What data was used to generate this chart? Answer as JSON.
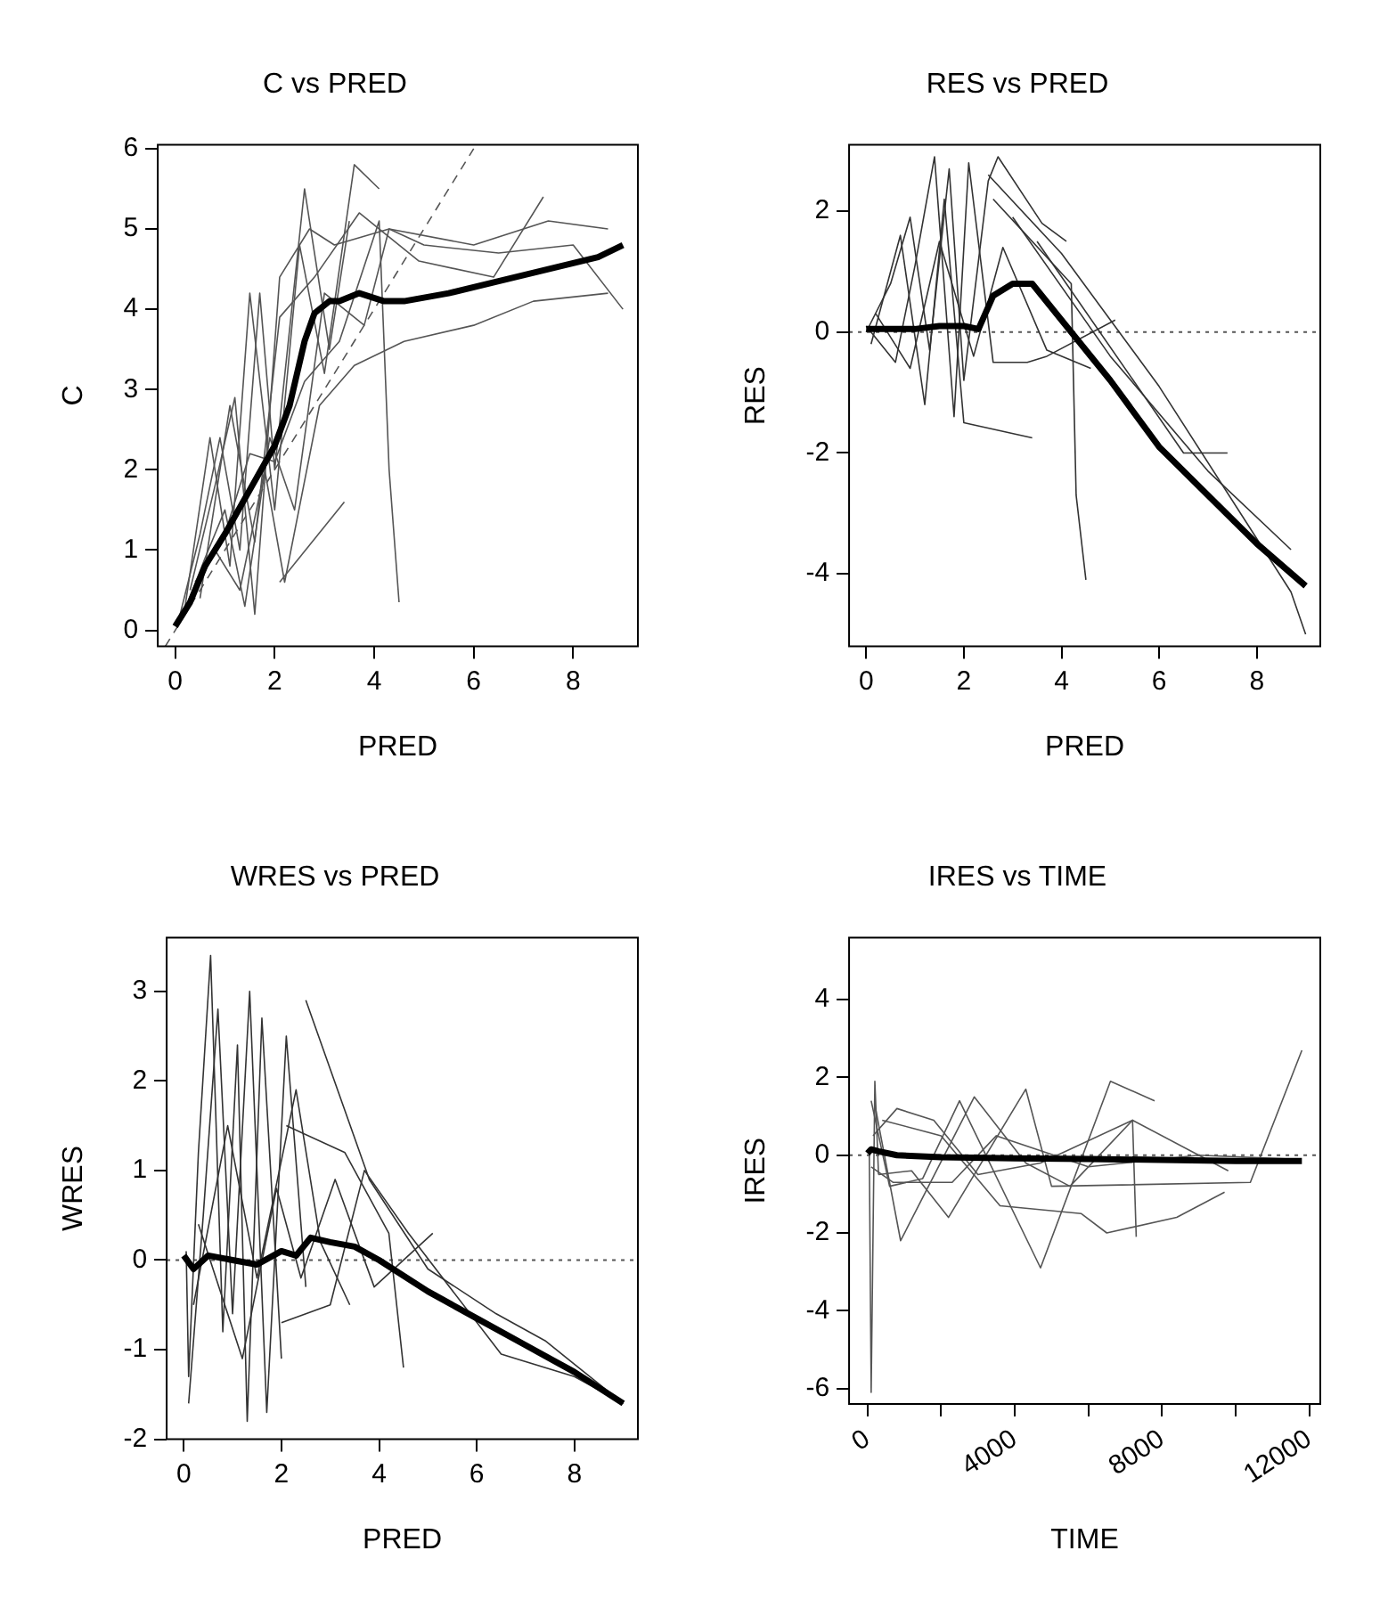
{
  "chart_data": [
    {
      "type": "line",
      "title": "C vs PRED",
      "xlabel": "PRED",
      "ylabel": "C",
      "xlim": [
        -0.35,
        9.3
      ],
      "ylim": [
        -0.2,
        6.05
      ],
      "xticks": [
        0,
        2,
        4,
        6,
        8
      ],
      "yticks": [
        0,
        1,
        2,
        3,
        4,
        5,
        6
      ],
      "grid": false,
      "legend": false,
      "marker": "none",
      "series": [
        {
          "color": "#000000",
          "x": [
            0,
            0.3,
            0.6,
            1,
            1.5,
            2,
            2.3,
            2.6,
            2.8,
            3.1,
            3.3,
            3.7,
            4.2,
            4.6,
            5.5,
            6.5,
            7.5,
            8.5,
            9
          ],
          "values": [
            0.05,
            0.35,
            0.8,
            1.2,
            1.75,
            2.3,
            2.8,
            3.6,
            3.95,
            4.1,
            4.1,
            4.2,
            4.1,
            4.1,
            4.2,
            4.35,
            4.5,
            4.65,
            4.8
          ]
        },
        {
          "color": "#555555",
          "line_style": "dashed",
          "x": [
            -0.2,
            6
          ],
          "values": [
            -0.2,
            6
          ]
        },
        {
          "color": "#555555",
          "x": [
            0.1,
            0.5,
            0.9,
            1.3,
            1.7,
            2.0,
            2.6,
            3.1,
            3.5
          ],
          "values": [
            0.2,
            1.2,
            2.4,
            1.0,
            4.2,
            2.0,
            5.5,
            3.5,
            5.1
          ]
        },
        {
          "color": "#555555",
          "x": [
            0.2,
            0.7,
            1.1,
            1.5,
            2.0,
            2.5,
            3.0,
            3.6,
            4.1
          ],
          "values": [
            0.3,
            2.4,
            0.8,
            4.2,
            1.5,
            4.8,
            3.2,
            5.8,
            5.5
          ]
        },
        {
          "color": "#555555",
          "x": [
            0.3,
            0.8,
            1.2,
            1.6,
            2.1,
            2.7,
            3.2,
            4.3,
            6.0,
            7.5,
            8.7
          ],
          "values": [
            0.5,
            1.8,
            2.9,
            0.2,
            4.4,
            5.0,
            4.8,
            5.0,
            4.8,
            5.1,
            5.0
          ]
        },
        {
          "color": "#555555",
          "x": [
            0.1,
            0.6,
            1.0,
            1.4,
            1.9,
            2.4,
            3.0,
            3.8,
            4.3,
            5.0,
            6.5,
            8.0,
            9.0
          ],
          "values": [
            0.1,
            0.9,
            1.5,
            0.3,
            2.4,
            1.5,
            4.2,
            3.8,
            5.0,
            4.8,
            4.7,
            4.8,
            4.0
          ]
        },
        {
          "color": "#555555",
          "x": [
            0.2,
            0.8,
            1.3,
            1.8,
            2.2,
            2.9,
            3.6,
            4.6,
            6.0,
            7.2,
            8.7
          ],
          "values": [
            0.2,
            1.0,
            0.5,
            2.0,
            0.6,
            2.8,
            3.3,
            3.6,
            3.8,
            4.1,
            4.2
          ]
        },
        {
          "color": "#555555",
          "x": [
            0.4,
            1.0,
            1.5,
            2.0,
            2.6,
            3.3,
            4.1,
            4.3,
            4.5
          ],
          "values": [
            0.6,
            1.2,
            2.2,
            2.1,
            3.1,
            3.6,
            5.1,
            2.0,
            0.35
          ]
        },
        {
          "color": "#555555",
          "x": [
            2.1,
            3.4
          ],
          "values": [
            0.6,
            1.6
          ]
        },
        {
          "color": "#555555",
          "x": [
            0.5,
            1.1,
            1.6,
            2.1,
            2.8,
            3.7,
            4.9,
            6.4,
            7.4
          ],
          "values": [
            0.4,
            2.8,
            1.1,
            3.9,
            4.4,
            5.2,
            4.6,
            4.4,
            5.4
          ]
        }
      ]
    },
    {
      "type": "line",
      "title": "RES vs PRED",
      "xlabel": "PRED",
      "ylabel": "RES",
      "xlim": [
        -0.35,
        9.3
      ],
      "ylim": [
        -5.2,
        3.1
      ],
      "xticks": [
        0,
        2,
        4,
        6,
        8
      ],
      "yticks": [
        -4,
        -2,
        0,
        2
      ],
      "grid": false,
      "legend": false,
      "marker": "none",
      "ref_lines": [
        {
          "axis": "y",
          "value": 0,
          "line_style": "dotted",
          "color": "#555555"
        }
      ],
      "series": [
        {
          "color": "#000000",
          "x": [
            0,
            0.5,
            1,
            1.5,
            2,
            2.3,
            2.6,
            3,
            3.4,
            4,
            5,
            6,
            7,
            8,
            9
          ],
          "values": [
            0.05,
            0.05,
            0.05,
            0.1,
            0.1,
            0.05,
            0.6,
            0.8,
            0.8,
            0.2,
            -0.8,
            -1.9,
            -2.7,
            -3.5,
            -4.2
          ]
        },
        {
          "color": "#333333",
          "x": [
            0,
            0.5,
            0.9,
            1.3,
            1.7,
            2.0,
            2.5,
            2.7,
            3.6,
            4.1
          ],
          "values": [
            0,
            0.8,
            1.9,
            -0.3,
            2.7,
            -0.8,
            2.5,
            2.9,
            1.8,
            1.5
          ]
        },
        {
          "color": "#333333",
          "x": [
            0,
            0.6,
            1.0,
            1.4,
            1.8,
            2.1,
            2.6,
            3.3,
            3.7,
            5.1
          ],
          "values": [
            0.1,
            -0.5,
            1.1,
            2.9,
            -1.4,
            2.8,
            -0.5,
            -0.5,
            -0.4,
            0.2
          ]
        },
        {
          "color": "#333333",
          "x": [
            0.1,
            0.7,
            1.2,
            1.6,
            2.0,
            3.4
          ],
          "values": [
            -0.2,
            1.6,
            -1.2,
            2.2,
            -1.5,
            -1.75
          ]
        },
        {
          "color": "#333333",
          "x": [
            2.5,
            4.0,
            6.0,
            8.7,
            9.0
          ],
          "values": [
            2.6,
            1.3,
            -0.9,
            -4.3,
            -5.0
          ]
        },
        {
          "color": "#333333",
          "x": [
            3.0,
            5.0,
            7.0,
            8.7
          ],
          "values": [
            1.9,
            -0.4,
            -2.3,
            -3.6
          ]
        },
        {
          "color": "#333333",
          "x": [
            2.6,
            4.2,
            4.3,
            4.5
          ],
          "values": [
            2.2,
            0.8,
            -2.7,
            -4.1
          ]
        },
        {
          "color": "#333333",
          "x": [
            3.5,
            6.5,
            7.4
          ],
          "values": [
            1.5,
            -2.0,
            -2.0
          ]
        },
        {
          "color": "#333333",
          "x": [
            0.2,
            0.9,
            1.5,
            2.2,
            2.8,
            3.7,
            4.6
          ],
          "values": [
            0.3,
            -0.6,
            1.5,
            -0.4,
            1.4,
            -0.3,
            -0.6
          ]
        }
      ]
    },
    {
      "type": "line",
      "title": "WRES vs PRED",
      "xlabel": "PRED",
      "ylabel": "WRES",
      "xlim": [
        -0.35,
        9.3
      ],
      "ylim": [
        -2,
        3.6
      ],
      "xticks": [
        0,
        2,
        4,
        6,
        8
      ],
      "yticks": [
        -2,
        -1,
        0,
        1,
        2,
        3
      ],
      "grid": false,
      "legend": false,
      "marker": "none",
      "ref_lines": [
        {
          "axis": "y",
          "value": 0,
          "line_style": "dotted",
          "color": "#555555"
        }
      ],
      "series": [
        {
          "color": "#000000",
          "x": [
            0,
            0.2,
            0.5,
            1,
            1.5,
            2,
            2.3,
            2.6,
            3,
            3.5,
            4,
            5,
            6,
            7,
            8,
            9
          ],
          "values": [
            0.05,
            -0.1,
            0.05,
            0,
            -0.05,
            0.1,
            0.05,
            0.25,
            0.2,
            0.15,
            0,
            -0.35,
            -0.65,
            -0.95,
            -1.25,
            -1.6
          ]
        },
        {
          "color": "#333333",
          "x": [
            0.05,
            0.1,
            0.3,
            0.55,
            0.8,
            1.1,
            1.3,
            1.6,
            2.0
          ],
          "values": [
            0.1,
            -1.3,
            1.2,
            3.4,
            -0.8,
            2.4,
            -1.8,
            2.7,
            -1.1
          ]
        },
        {
          "color": "#333333",
          "x": [
            0.1,
            0.4,
            0.7,
            1.0,
            1.35,
            1.7,
            2.1,
            2.5
          ],
          "values": [
            -1.6,
            0.5,
            2.8,
            -0.6,
            3.0,
            -1.7,
            2.5,
            -0.3
          ]
        },
        {
          "color": "#333333",
          "x": [
            2.5,
            3.8,
            5.0,
            6.4,
            7.4,
            9.0
          ],
          "values": [
            2.9,
            0.9,
            -0.1,
            -0.6,
            -0.9,
            -1.6
          ]
        },
        {
          "color": "#333333",
          "x": [
            2.1,
            3.3,
            4.2,
            4.5
          ],
          "values": [
            1.5,
            1.2,
            0.3,
            -1.2
          ]
        },
        {
          "color": "#333333",
          "x": [
            2.0,
            3.0,
            3.7,
            4.6,
            6.5,
            8.0,
            9.0
          ],
          "values": [
            -0.7,
            -0.5,
            1.0,
            0.3,
            -1.05,
            -1.3,
            -1.6
          ]
        },
        {
          "color": "#333333",
          "x": [
            0.2,
            0.9,
            1.5,
            2.3,
            2.8,
            3.4
          ],
          "values": [
            -0.5,
            1.5,
            -0.2,
            1.9,
            0.2,
            -0.5
          ]
        },
        {
          "color": "#333333",
          "x": [
            0.3,
            1.2,
            1.9,
            2.4,
            3.1,
            3.9,
            5.1
          ],
          "values": [
            0.4,
            -1.1,
            0.8,
            -0.2,
            0.9,
            -0.3,
            0.3
          ]
        }
      ]
    },
    {
      "type": "line",
      "title": "IRES vs TIME",
      "xlabel": "TIME",
      "ylabel": "IRES",
      "xlim": [
        -500,
        12300
      ],
      "ylim": [
        -6.4,
        5.6
      ],
      "xticks": [
        0,
        {
          "value": 2000,
          "label": null
        },
        4000,
        {
          "value": 6000,
          "label": null
        },
        8000,
        {
          "value": 10000,
          "label": null
        },
        12000
      ],
      "yticks": [
        -6,
        -4,
        -2,
        0,
        2,
        4
      ],
      "grid": false,
      "legend": false,
      "marker": "none",
      "ref_lines": [
        {
          "axis": "y",
          "value": 0,
          "line_style": "dotted",
          "color": "#555555"
        }
      ],
      "series": [
        {
          "color": "#000000",
          "x": [
            0,
            100,
            300,
            800,
            2000,
            4000,
            6000,
            8000,
            10000,
            11800
          ],
          "values": [
            0.05,
            0.15,
            0.1,
            0,
            -0.05,
            -0.08,
            -0.1,
            -0.12,
            -0.15,
            -0.15
          ]
        },
        {
          "color": "#555555",
          "x": [
            50,
            100,
            200,
            300
          ],
          "values": [
            0,
            -6.1,
            1.9,
            -0.5
          ]
        },
        {
          "color": "#555555",
          "x": [
            100,
            600,
            1500,
            2500,
            4700,
            6600,
            7800
          ],
          "values": [
            1.4,
            -0.8,
            -0.6,
            1.4,
            -2.9,
            1.9,
            1.4
          ]
        },
        {
          "color": "#555555",
          "x": [
            200,
            900,
            2900,
            4300,
            5500,
            7200,
            7300
          ],
          "values": [
            1.3,
            -2.2,
            1.5,
            -0.2,
            -0.8,
            0.9,
            -2.1
          ]
        },
        {
          "color": "#555555",
          "x": [
            400,
            2000,
            3600,
            5800,
            6500,
            8400,
            9700
          ],
          "values": [
            0.9,
            0.5,
            -1.3,
            -1.5,
            -2.0,
            -1.6,
            -0.95
          ]
        },
        {
          "color": "#555555",
          "x": [
            300,
            1200,
            2200,
            4300,
            5000,
            10400,
            11800
          ],
          "values": [
            -0.5,
            -0.4,
            -1.6,
            1.7,
            -0.8,
            -0.7,
            2.7
          ]
        },
        {
          "color": "#555555",
          "x": [
            150,
            800,
            1800,
            3000,
            4700,
            7200,
            9800
          ],
          "values": [
            0.5,
            1.2,
            0.9,
            -0.5,
            -0.2,
            0.9,
            -0.4
          ]
        },
        {
          "color": "#555555",
          "x": [
            100,
            700,
            2300,
            3500,
            6000,
            9000,
            11500
          ],
          "values": [
            -0.3,
            -0.7,
            -0.7,
            0.5,
            -0.3,
            0.0,
            -0.1
          ]
        }
      ]
    }
  ]
}
